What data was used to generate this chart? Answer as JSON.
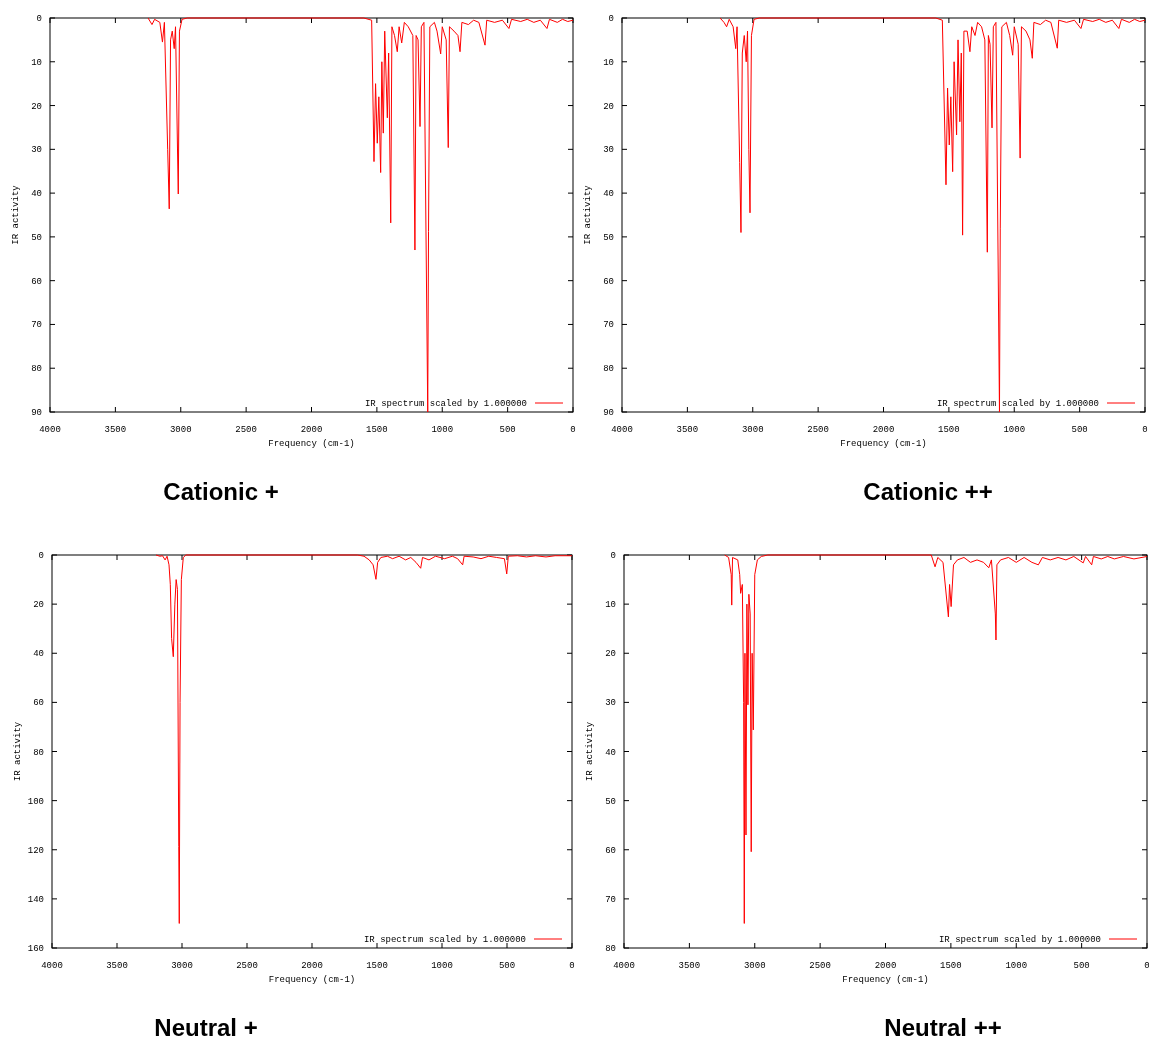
{
  "chart_data": [
    {
      "type": "line",
      "title": "Cationic +",
      "xlabel": "Frequency (cm-1)",
      "ylabel": "IR activity",
      "xlim": [
        4000,
        0
      ],
      "ylim": [
        90,
        0
      ],
      "xticks": [
        4000,
        3500,
        3000,
        2500,
        2000,
        1500,
        1000,
        500,
        0
      ],
      "yticks": [
        0,
        10,
        20,
        30,
        40,
        50,
        60,
        70,
        80,
        90
      ],
      "legend": "bottom right",
      "grid": false,
      "line_style": "solid",
      "x": [
        3250,
        3220,
        3200,
        3160,
        3140,
        3125,
        3100,
        3088,
        3078,
        3065,
        3050,
        3040,
        3025,
        3019,
        3010,
        2990,
        2950,
        1600,
        1540,
        1522,
        1510,
        1497,
        1485,
        1471,
        1462,
        1451,
        1440,
        1420,
        1410,
        1394,
        1385,
        1365,
        1344,
        1330,
        1310,
        1290,
        1260,
        1225,
        1209,
        1200,
        1185,
        1170,
        1160,
        1140,
        1111,
        1105,
        1095,
        1060,
        1040,
        1012,
        1000,
        970,
        954,
        945,
        910,
        880,
        864,
        850,
        800,
        760,
        720,
        673,
        660,
        600,
        540,
        490,
        470,
        400,
        350,
        300,
        250,
        199,
        180,
        120,
        80,
        40,
        0
      ],
      "series": [
        {
          "name": "IR spectrum scaled by 1.000000",
          "color": "#ff0000",
          "values": [
            0,
            1.5,
            0.3,
            1,
            5.5,
            1,
            30,
            43.6,
            5,
            3,
            7,
            2,
            29.7,
            40.2,
            3,
            0.3,
            0,
            0,
            0.5,
            32.8,
            15,
            28.6,
            18,
            35.3,
            10,
            26.3,
            3,
            22.8,
            8,
            46.8,
            2,
            4,
            7.7,
            2,
            5.7,
            1,
            2,
            4,
            53,
            4,
            5,
            24.8,
            2,
            1,
            90,
            48.8,
            2,
            1,
            3,
            8.2,
            2,
            5,
            29.6,
            2,
            3,
            4,
            7.7,
            1,
            1.5,
            0.5,
            1,
            6.2,
            0.5,
            1,
            0.5,
            2.4,
            0.3,
            0.8,
            0.3,
            1,
            0.5,
            2.4,
            0.3,
            1,
            0.3,
            0.8,
            0.5
          ]
        }
      ]
    },
    {
      "type": "line",
      "title": "Cationic ++",
      "xlabel": "Frequency (cm-1)",
      "ylabel": "IR activity",
      "xlim": [
        4000,
        0
      ],
      "ylim": [
        90,
        0
      ],
      "xticks": [
        4000,
        3500,
        3000,
        2500,
        2000,
        1500,
        1000,
        500,
        0
      ],
      "yticks": [
        0,
        10,
        20,
        30,
        40,
        50,
        60,
        70,
        80,
        90
      ],
      "legend": "bottom right",
      "grid": false,
      "line_style": "solid",
      "x": [
        3250,
        3220,
        3200,
        3180,
        3150,
        3130,
        3120,
        3100,
        3090,
        3080,
        3065,
        3050,
        3040,
        3030,
        3021,
        3010,
        2990,
        2950,
        1600,
        1550,
        1522,
        1510,
        1497,
        1485,
        1471,
        1460,
        1441,
        1430,
        1416,
        1405,
        1395,
        1385,
        1360,
        1339,
        1325,
        1300,
        1280,
        1250,
        1225,
        1206,
        1198,
        1185,
        1170,
        1160,
        1140,
        1113,
        1107,
        1095,
        1060,
        1035,
        1012,
        1000,
        970,
        955,
        945,
        910,
        880,
        862,
        850,
        800,
        760,
        720,
        671,
        660,
        600,
        540,
        490,
        470,
        400,
        350,
        300,
        250,
        200,
        180,
        120,
        80,
        40,
        0
      ],
      "series": [
        {
          "name": "IR spectrum scaled by 1.000000",
          "color": "#ff0000",
          "values": [
            0,
            1,
            2,
            0.3,
            2,
            7,
            2,
            33,
            49,
            8,
            4,
            10,
            3,
            30,
            44.5,
            4,
            0.3,
            0,
            0,
            0.5,
            38.1,
            16,
            29,
            18,
            35.1,
            10,
            26.7,
            5,
            23.7,
            8,
            49.6,
            3,
            3,
            7.7,
            2,
            4,
            1,
            2,
            5,
            53.5,
            4,
            6,
            25.1,
            2,
            1,
            90,
            48,
            2,
            1,
            4,
            8.5,
            2,
            6,
            32,
            2,
            3,
            5,
            9.2,
            1,
            1.5,
            0.5,
            1,
            6.9,
            0.5,
            1,
            0.5,
            2.4,
            0.3,
            0.8,
            0.3,
            1,
            0.5,
            2.4,
            0.3,
            1,
            0.3,
            0.8,
            0.5
          ]
        }
      ]
    },
    {
      "type": "line",
      "title": "Neutral +",
      "xlabel": "Frequency (cm-1)",
      "ylabel": "IR activity",
      "xlim": [
        4000,
        0
      ],
      "ylim": [
        160,
        0
      ],
      "xticks": [
        4000,
        3500,
        3000,
        2500,
        2000,
        1500,
        1000,
        500,
        0
      ],
      "yticks": [
        0,
        20,
        40,
        60,
        80,
        100,
        120,
        140,
        160
      ],
      "legend": "bottom right",
      "grid": false,
      "line_style": "solid",
      "x": [
        3200,
        3170,
        3150,
        3130,
        3115,
        3100,
        3090,
        3080,
        3067,
        3055,
        3045,
        3035,
        3025,
        3021,
        3015,
        3005,
        2990,
        2970,
        1650,
        1600,
        1560,
        1530,
        1508,
        1495,
        1470,
        1420,
        1380,
        1330,
        1280,
        1240,
        1200,
        1164,
        1150,
        1100,
        1050,
        980,
        920,
        880,
        841,
        830,
        760,
        700,
        640,
        580,
        520,
        502,
        490,
        420,
        350,
        280,
        200,
        130,
        0
      ],
      "series": [
        {
          "name": "IR spectrum scaled by 1.000000",
          "color": "#ff0000",
          "values": [
            0,
            0.5,
            0.3,
            2,
            0.5,
            4,
            12,
            34,
            41.4,
            20,
            10,
            14,
            118.7,
            150,
            60,
            10,
            1,
            0,
            0,
            0.5,
            2,
            4,
            9.9,
            3,
            1,
            0.5,
            1.5,
            0.5,
            2,
            1,
            3,
            5.4,
            1,
            2,
            0.5,
            1.5,
            0.5,
            1.5,
            4,
            0.5,
            0.8,
            1.5,
            0.5,
            1,
            1.5,
            7.7,
            0.5,
            0.3,
            0.8,
            0.3,
            0.8,
            0.3,
            0.3
          ]
        }
      ]
    },
    {
      "type": "line",
      "title": "Neutral ++",
      "xlabel": "Frequency (cm-1)",
      "ylabel": "IR activity",
      "xlim": [
        4000,
        0
      ],
      "ylim": [
        80,
        0
      ],
      "xticks": [
        4000,
        3500,
        3000,
        2500,
        2000,
        1500,
        1000,
        500,
        0
      ],
      "yticks": [
        0,
        10,
        20,
        30,
        40,
        50,
        60,
        70,
        80
      ],
      "legend": "bottom right",
      "grid": false,
      "line_style": "solid",
      "x": [
        3230,
        3200,
        3180,
        3176,
        3170,
        3130,
        3115,
        3108,
        3095,
        3085,
        3080,
        3075,
        3067,
        3060,
        3052,
        3045,
        3035,
        3027,
        3020,
        3011,
        3000,
        2980,
        2950,
        2900,
        1650,
        1621,
        1600,
        1560,
        1519,
        1510,
        1498,
        1480,
        1450,
        1400,
        1350,
        1300,
        1250,
        1210,
        1190,
        1160,
        1155,
        1148,
        1120,
        1060,
        1000,
        940,
        880,
        831,
        800,
        740,
        680,
        620,
        560,
        488,
        470,
        423,
        410,
        350,
        300,
        250,
        180,
        100,
        0
      ],
      "series": [
        {
          "name": "IR spectrum scaled by 1.000000",
          "color": "#ff0000",
          "values": [
            0,
            0.5,
            4,
            10.2,
            0.5,
            1,
            4,
            7.8,
            6,
            30,
            75,
            20,
            57,
            10,
            30.5,
            8,
            12,
            60.4,
            20,
            35.6,
            4,
            1,
            0.3,
            0,
            0,
            2.4,
            0.5,
            1.5,
            12.6,
            6,
            10.5,
            2,
            1,
            0.5,
            1.5,
            1,
            1.5,
            2.6,
            1,
            12,
            17.3,
            2,
            1,
            0.5,
            1.5,
            0.5,
            1.5,
            2,
            0.5,
            1,
            0.5,
            1,
            0.3,
            1.6,
            0.3,
            2,
            0.3,
            0.8,
            0.3,
            0.8,
            0.3,
            0.8,
            0.3
          ]
        }
      ]
    }
  ]
}
